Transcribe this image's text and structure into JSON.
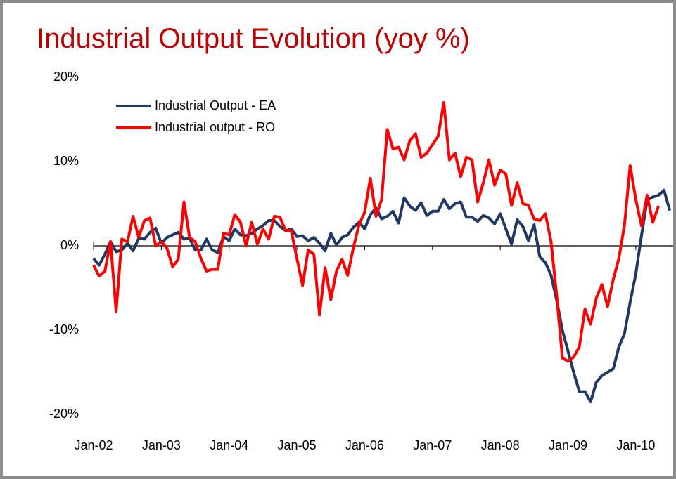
{
  "chart_data": {
    "type": "line",
    "title": "Industrial Output Evolution (yoy %)",
    "categories": [
      "Jan-02",
      null,
      null,
      null,
      null,
      null,
      null,
      null,
      null,
      null,
      null,
      null,
      "Jan-03",
      null,
      null,
      null,
      null,
      null,
      null,
      null,
      null,
      null,
      null,
      null,
      "Jan-04",
      null,
      null,
      null,
      null,
      null,
      null,
      null,
      null,
      null,
      null,
      null,
      "Jan-05",
      null,
      null,
      null,
      null,
      null,
      null,
      null,
      null,
      null,
      null,
      null,
      "Jan-06",
      null,
      null,
      null,
      null,
      null,
      null,
      null,
      null,
      null,
      null,
      null,
      "Jan-07",
      null,
      null,
      null,
      null,
      null,
      null,
      null,
      null,
      null,
      null,
      null,
      "Jan-08",
      null,
      null,
      null,
      null,
      null,
      null,
      null,
      null,
      null,
      null,
      null,
      "Jan-09",
      null,
      null,
      null,
      null,
      null,
      null,
      null,
      null,
      null,
      null,
      null,
      "Jan-10",
      null,
      null,
      null,
      null,
      null,
      null
    ],
    "series": [
      {
        "name": "Industrial Output - EA",
        "color": "#1f3864",
        "values": [
          -1.5,
          -2.3,
          -1.0,
          0.5,
          -0.7,
          -0.5,
          0.3,
          -0.6,
          0.9,
          0.8,
          1.6,
          2.1,
          0.3,
          1.0,
          1.3,
          1.6,
          0.8,
          0.9,
          -0.5,
          -0.5,
          0.8,
          -0.5,
          -0.8,
          1.1,
          0.6,
          2.0,
          1.3,
          1.2,
          1.5,
          2.0,
          2.4,
          3.0,
          3.0,
          2.3,
          1.8,
          2.0,
          1.1,
          1.2,
          0.6,
          1.0,
          0.3,
          -0.6,
          1.5,
          0.1,
          1.0,
          1.3,
          2.2,
          2.8,
          2.0,
          3.7,
          4.5,
          3.2,
          3.5,
          4.1,
          2.7,
          5.7,
          4.7,
          4.2,
          5.1,
          3.6,
          4.1,
          4.1,
          5.5,
          4.4,
          5.0,
          5.2,
          3.4,
          3.4,
          2.9,
          3.6,
          3.3,
          2.6,
          3.8,
          2.0,
          0.2,
          3.1,
          2.3,
          0.6,
          2.5,
          -1.3,
          -2.0,
          -3.5,
          -6.5,
          -10.0,
          -12.5,
          -15.0,
          -17.3,
          -17.3,
          -18.5,
          -16.2,
          -15.4,
          -15.0,
          -14.6,
          -12.0,
          -10.4,
          -6.7,
          -3.3,
          1.2,
          5.4,
          5.8,
          6.0,
          6.6,
          4.2
        ]
      },
      {
        "name": "Industrial output - RO",
        "color": "#ff0000",
        "values": [
          -2.3,
          -3.6,
          -3.0,
          0.5,
          -7.8,
          0.8,
          0.5,
          3.5,
          1.0,
          3.0,
          3.3,
          0.0,
          0.5,
          -0.3,
          -2.5,
          -1.6,
          5.2,
          1.0,
          0.5,
          -1.5,
          -3.0,
          -2.8,
          -2.8,
          1.5,
          1.3,
          3.7,
          2.8,
          0.0,
          2.8,
          0.2,
          2.0,
          0.8,
          3.5,
          3.4,
          1.8,
          1.8,
          -1.5,
          -4.7,
          -0.5,
          -1.0,
          -8.2,
          -2.6,
          -6.4,
          -3.0,
          -1.6,
          -3.5,
          -0.2,
          2.5,
          4.0,
          8.0,
          3.5,
          5.5,
          13.8,
          11.5,
          11.7,
          10.2,
          12.5,
          13.3,
          10.5,
          11.0,
          12.0,
          13.0,
          17.0,
          10.2,
          11.0,
          8.2,
          10.5,
          10.2,
          5.2,
          7.5,
          10.2,
          7.2,
          9.0,
          8.5,
          4.8,
          7.5,
          5.0,
          4.8,
          3.2,
          3.0,
          3.8,
          0.5,
          -6.0,
          -13.3,
          -13.7,
          -13.2,
          -12.0,
          -7.5,
          -9.3,
          -6.2,
          -4.6,
          -7.2,
          -4.0,
          -1.5,
          2.5,
          9.5,
          5.5,
          2.4,
          6.0,
          2.8,
          4.7,
          null,
          null
        ]
      }
    ],
    "ylim": [
      -20,
      20
    ],
    "yticks": [
      {
        "value": -20,
        "label": "-20%"
      },
      {
        "value": -10,
        "label": "-10%"
      },
      {
        "value": 0,
        "label": "0%"
      },
      {
        "value": 10,
        "label": "10%"
      },
      {
        "value": 20,
        "label": "20%"
      }
    ],
    "grid": false,
    "legend": "upper left"
  }
}
